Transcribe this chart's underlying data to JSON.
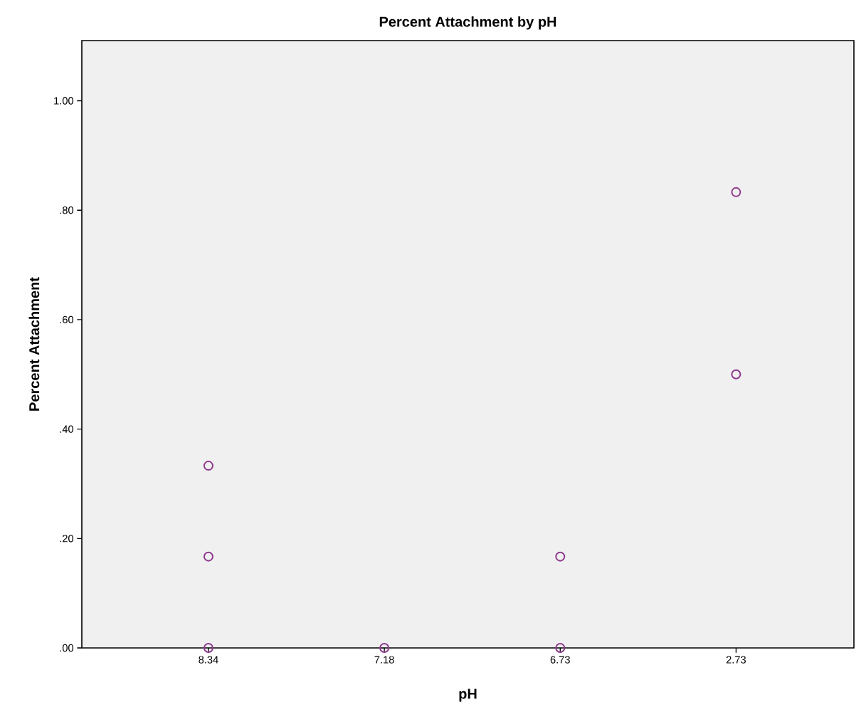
{
  "chart_data": {
    "type": "scatter",
    "title": "Percent Attachment by pH",
    "xlabel": "pH",
    "ylabel": "Percent Attachment",
    "categories": [
      "8.34",
      "7.18",
      "6.73",
      "2.73"
    ],
    "series": [
      {
        "color": "#8e3a8e",
        "x": [
          "8.34",
          "8.34",
          "8.34",
          "7.18",
          "6.73",
          "6.73",
          "2.73",
          "2.73"
        ],
        "values": [
          0,
          0.167,
          0.333,
          0,
          0,
          0.167,
          0.5,
          0.833
        ]
      }
    ],
    "ylim": [
      0,
      1.11
    ],
    "yticks": [
      {
        "value": 0,
        "label": ".00"
      },
      {
        "value": 0.2,
        "label": ".20"
      },
      {
        "value": 0.4,
        "label": ".40"
      },
      {
        "value": 0.6,
        "label": ".60"
      },
      {
        "value": 0.8,
        "label": ".80"
      },
      {
        "value": 1,
        "label": "1.00"
      }
    ],
    "grid": false,
    "marker": "circle"
  }
}
